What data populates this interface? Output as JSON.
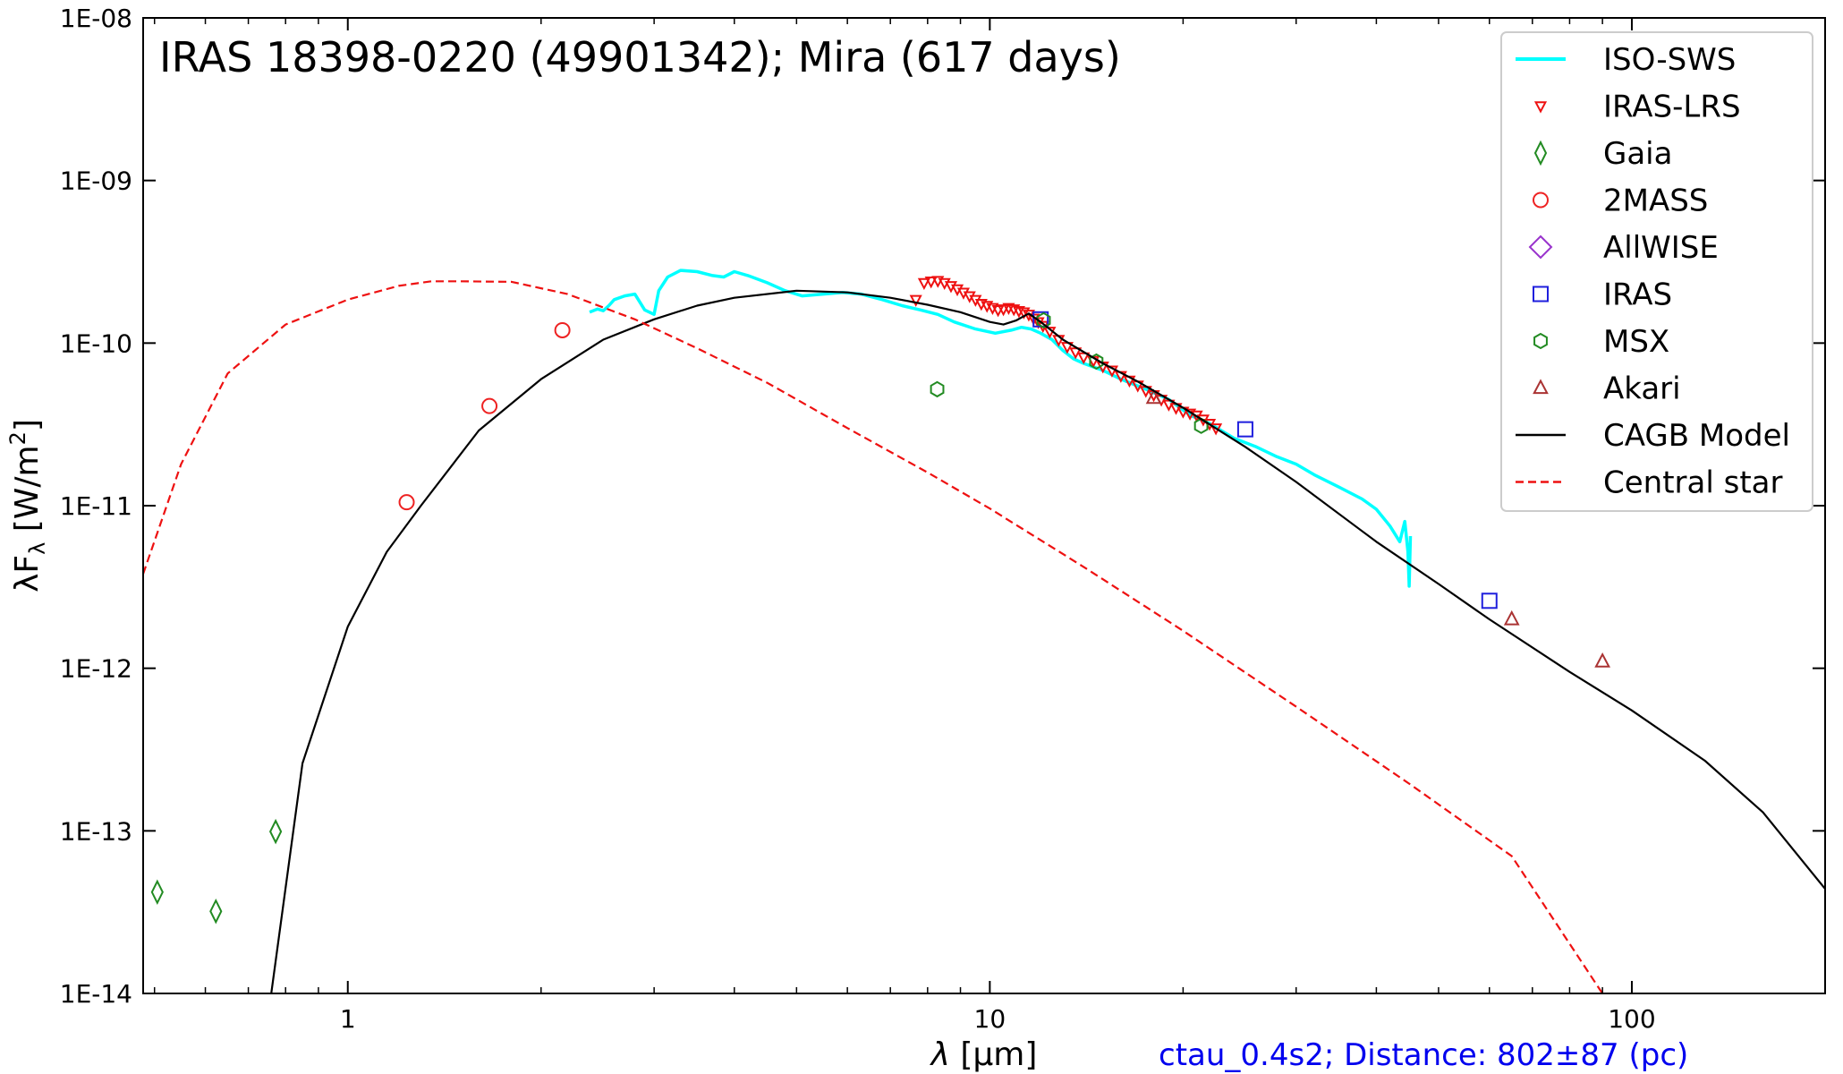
{
  "chart_data": {
    "type": "scatter",
    "title": "IRAS 18398-0220 (49901342); Mira (617 days)",
    "xlabel_symbol": "λ",
    "xlabel_unit": " [μm]",
    "ylabel_main": "λF",
    "ylabel_sub": "λ",
    "ylabel_unit": " [W/m",
    "ylabel_sup": "2",
    "ylabel_close": "]",
    "footnote": "ctau_0.4s2; Distance: 802±87 (pc)",
    "footnote_color": "#0000ee",
    "x_scale": "log",
    "y_scale": "log",
    "xlim": [
      0.48,
      200
    ],
    "ylim": [
      1e-14,
      1e-08
    ],
    "x_ticks": [
      {
        "value": 1,
        "label": "1"
      },
      {
        "value": 10,
        "label": "10"
      },
      {
        "value": 100,
        "label": "100"
      }
    ],
    "y_ticks": [
      {
        "value": 1e-08,
        "label": "1E-08"
      },
      {
        "value": 1e-09,
        "label": "1E-09"
      },
      {
        "value": 1e-10,
        "label": "1E-10"
      },
      {
        "value": 1e-11,
        "label": "1E-11"
      },
      {
        "value": 1e-12,
        "label": "1E-12"
      },
      {
        "value": 1e-13,
        "label": "1E-13"
      },
      {
        "value": 1e-14,
        "label": "1E-14"
      }
    ],
    "legend_position": "top-right",
    "series": [
      {
        "name": "ISO-SWS",
        "kind": "line",
        "color": "#00ffff",
        "dash": "solid",
        "x": [
          2.38,
          2.45,
          2.5,
          2.55,
          2.6,
          2.7,
          2.8,
          2.9,
          3.0,
          3.05,
          3.15,
          3.3,
          3.5,
          3.7,
          3.85,
          4.0,
          4.2,
          4.5,
          4.8,
          5.1,
          5.5,
          5.9,
          6.3,
          6.8,
          7.3,
          7.8,
          8.3,
          8.8,
          9.5,
          10.2,
          10.8,
          11.2,
          11.6,
          12.0,
          12.5,
          13.0,
          13.5,
          14.0,
          15.0,
          16.0,
          17.5,
          19.0,
          20.5,
          22.0,
          24.0,
          26.0,
          28.0,
          30.0,
          32.0,
          35.0,
          38.0,
          40.0,
          42.0,
          43.5,
          44.3,
          44.8,
          45.0,
          45.2
        ],
        "y": [
          1.55e-10,
          1.62e-10,
          1.58e-10,
          1.7e-10,
          1.85e-10,
          1.95e-10,
          2e-10,
          1.6e-10,
          1.5e-10,
          2.1e-10,
          2.55e-10,
          2.8e-10,
          2.75e-10,
          2.6e-10,
          2.55e-10,
          2.75e-10,
          2.6e-10,
          2.35e-10,
          2.1e-10,
          1.95e-10,
          2e-10,
          2.05e-10,
          2e-10,
          1.85e-10,
          1.7e-10,
          1.6e-10,
          1.5e-10,
          1.35e-10,
          1.22e-10,
          1.15e-10,
          1.2e-10,
          1.25e-10,
          1.22e-10,
          1.15e-10,
          1.05e-10,
          9e-11,
          8e-11,
          7.5e-11,
          6.8e-11,
          6e-11,
          5.2e-11,
          4.5e-11,
          3.6e-11,
          3.2e-11,
          2.6e-11,
          2.3e-11,
          2e-11,
          1.8e-11,
          1.55e-11,
          1.3e-11,
          1.1e-11,
          9.5e-12,
          7.5e-12,
          6e-12,
          8e-12,
          5.2e-12,
          3.2e-12,
          6.5e-12
        ]
      },
      {
        "name": "IRAS-LRS",
        "kind": "marker",
        "marker": "triangle-down",
        "color": "#ee1111",
        "x": [
          7.67,
          7.9,
          8.1,
          8.3,
          8.5,
          8.7,
          8.9,
          9.1,
          9.3,
          9.5,
          9.7,
          9.9,
          10.1,
          10.3,
          10.5,
          10.7,
          10.9,
          11.1,
          11.3,
          11.5,
          11.7,
          11.9,
          12.1,
          12.4,
          12.8,
          13.2,
          13.6,
          14.0,
          14.5,
          15.0,
          15.5,
          16.0,
          16.5,
          17.0,
          17.5,
          18.0,
          18.5,
          19.0,
          19.5,
          20.0,
          20.5,
          21.0,
          21.5,
          22.0,
          22.5
        ],
        "y": [
          1.85e-10,
          2.35e-10,
          2.4e-10,
          2.42e-10,
          2.35e-10,
          2.25e-10,
          2.15e-10,
          2.05e-10,
          1.95e-10,
          1.85e-10,
          1.75e-10,
          1.7e-10,
          1.65e-10,
          1.6e-10,
          1.62e-10,
          1.65e-10,
          1.62e-10,
          1.58e-10,
          1.55e-10,
          1.5e-10,
          1.42e-10,
          1.35e-10,
          1.28e-10,
          1.18e-10,
          1.05e-10,
          9.5e-11,
          8.8e-11,
          8.2e-11,
          7.8e-11,
          7.2e-11,
          6.8e-11,
          6.3e-11,
          5.9e-11,
          5.5e-11,
          5.1e-11,
          4.8e-11,
          4.5e-11,
          4.2e-11,
          4e-11,
          3.8e-11,
          3.7e-11,
          3.6e-11,
          3.4e-11,
          3.2e-11,
          3e-11
        ]
      },
      {
        "name": "Gaia",
        "kind": "marker",
        "marker": "thin-diamond",
        "color": "#228b22",
        "x": [
          0.505,
          0.623,
          0.772
        ],
        "y": [
          4.2e-14,
          3.2e-14,
          9.9e-14
        ]
      },
      {
        "name": "2MASS",
        "kind": "marker",
        "marker": "circle",
        "color": "#ee2222",
        "x": [
          1.235,
          1.662,
          2.159
        ],
        "y": [
          1.05e-11,
          4.1e-11,
          1.2e-10
        ]
      },
      {
        "name": "AllWISE",
        "kind": "marker",
        "marker": "diamond",
        "color": "#9933cc",
        "x": [],
        "y": []
      },
      {
        "name": "IRAS",
        "kind": "marker",
        "marker": "square",
        "color": "#1f1fdd",
        "x": [
          12,
          25,
          60
        ],
        "y": [
          1.4e-10,
          2.95e-11,
          2.6e-12
        ]
      },
      {
        "name": "MSX",
        "kind": "marker",
        "marker": "hexagon",
        "color": "#228b22",
        "x": [
          8.28,
          12.13,
          14.65,
          21.34
        ],
        "y": [
          5.2e-11,
          1.38e-10,
          7.7e-11,
          3.1e-11
        ]
      },
      {
        "name": "Akari",
        "kind": "marker",
        "marker": "triangle-up",
        "color": "#aa3333",
        "x": [
          18,
          65,
          90
        ],
        "y": [
          4.6e-11,
          2e-12,
          1.1e-12
        ]
      },
      {
        "name": "CAGB Model",
        "kind": "line",
        "color": "#000000",
        "dash": "solid",
        "x": [
          0.76,
          0.85,
          1.0,
          1.15,
          1.3,
          1.6,
          2.0,
          2.5,
          3.0,
          3.5,
          4.0,
          5.0,
          6.0,
          7.0,
          8.0,
          9.0,
          10.0,
          10.5,
          11.0,
          11.5,
          12.0,
          13.0,
          15.0,
          17.0,
          20.0,
          25.0,
          30.0,
          40.0,
          50.0,
          60.0,
          80.0,
          100.0,
          130.0,
          160.0,
          200.0
        ],
        "y": [
          1e-14,
          2.6e-13,
          1.8e-12,
          5.2e-12,
          1e-11,
          2.9e-11,
          6e-11,
          1.05e-10,
          1.4e-10,
          1.7e-10,
          1.9e-10,
          2.1e-10,
          2.05e-10,
          1.9e-10,
          1.72e-10,
          1.55e-10,
          1.35e-10,
          1.3e-10,
          1.38e-10,
          1.52e-10,
          1.35e-10,
          1.05e-10,
          7.5e-11,
          5.8e-11,
          4e-11,
          2.3e-11,
          1.4e-11,
          6e-12,
          3.3e-12,
          2e-12,
          9.5e-13,
          5.5e-13,
          2.7e-13,
          1.3e-13,
          4.4e-14
        ]
      },
      {
        "name": "Central star",
        "kind": "line",
        "color": "#ee1111",
        "dash": "dashed",
        "x": [
          0.48,
          0.55,
          0.65,
          0.8,
          1.0,
          1.2,
          1.35,
          1.5,
          1.8,
          2.2,
          2.8,
          3.5,
          4.5,
          6.0,
          8.0,
          10.0,
          14.0,
          20.0,
          30.0,
          45.0,
          65.0,
          90.0
        ],
        "y": [
          3.8e-12,
          1.8e-11,
          6.5e-11,
          1.3e-10,
          1.85e-10,
          2.25e-10,
          2.4e-10,
          2.4e-10,
          2.38e-10,
          2e-10,
          1.4e-10,
          9.3e-11,
          5.7e-11,
          3e-11,
          1.6e-11,
          9.6e-12,
          4.2e-12,
          1.7e-12,
          5.8e-13,
          1.95e-13,
          7e-14,
          1e-14
        ]
      }
    ]
  }
}
